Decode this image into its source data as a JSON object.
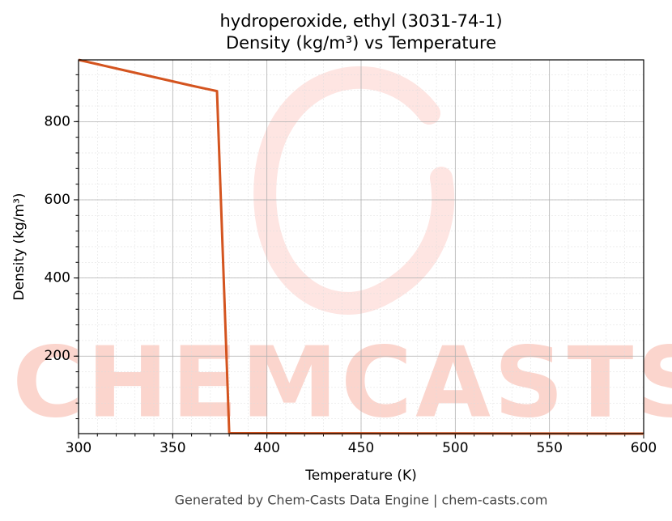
{
  "chart_data": {
    "type": "line",
    "title": "hydroperoxide, ethyl (3031-74-1)",
    "subtitle": "Density (kg/m³) vs Temperature",
    "x_label": "Temperature (K)",
    "y_label": "Density (kg/m³)",
    "watermark": "CHEMCASTS",
    "footer": "Generated by Chem-Casts Data Engine | chem-casts.com",
    "x": [
      300,
      320,
      340,
      360,
      373.5,
      380,
      400,
      450,
      500,
      550,
      600
    ],
    "series": [
      {
        "name": "Density",
        "color": "#d4541f",
        "values": [
          958,
          936,
          914,
          892,
          878,
          3,
          2.8,
          2.5,
          2.2,
          2.0,
          1.8
        ]
      }
    ],
    "xlim": [
      300,
      600
    ],
    "xticks": [
      300,
      350,
      400,
      450,
      500,
      550,
      600
    ],
    "ylim": [
      1.8,
      958
    ],
    "yticks": [
      200,
      400,
      600,
      800
    ],
    "grid": true
  }
}
